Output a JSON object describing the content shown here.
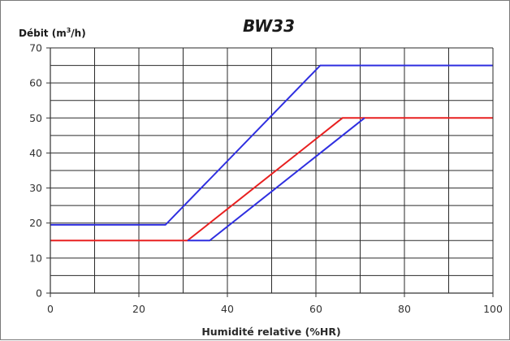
{
  "chart_data": {
    "type": "line",
    "title": "BW33",
    "ylabel_parts": [
      "Débit (m",
      "3",
      "/h)"
    ],
    "xlabel": "Humidité relative (%HR)",
    "xlim": [
      0,
      100
    ],
    "ylim": [
      0,
      70
    ],
    "x_ticks": [
      0,
      20,
      40,
      60,
      80,
      100
    ],
    "y_ticks": [
      0,
      10,
      20,
      30,
      40,
      50,
      60,
      70
    ],
    "x_minor_step": 10,
    "y_minor_step": 5,
    "grid": true,
    "series": [
      {
        "color": "#2f2fe0",
        "points": [
          [
            0,
            19.5
          ],
          [
            26,
            19.5
          ],
          [
            61,
            65
          ],
          [
            100,
            65
          ]
        ]
      },
      {
        "color": "#e82020",
        "points": [
          [
            0,
            15
          ],
          [
            31,
            15
          ],
          [
            66,
            50
          ],
          [
            100,
            50
          ]
        ]
      },
      {
        "color": "#2f2fe0",
        "points": [
          [
            31,
            15
          ],
          [
            36,
            15
          ],
          [
            71,
            50
          ]
        ]
      }
    ]
  }
}
